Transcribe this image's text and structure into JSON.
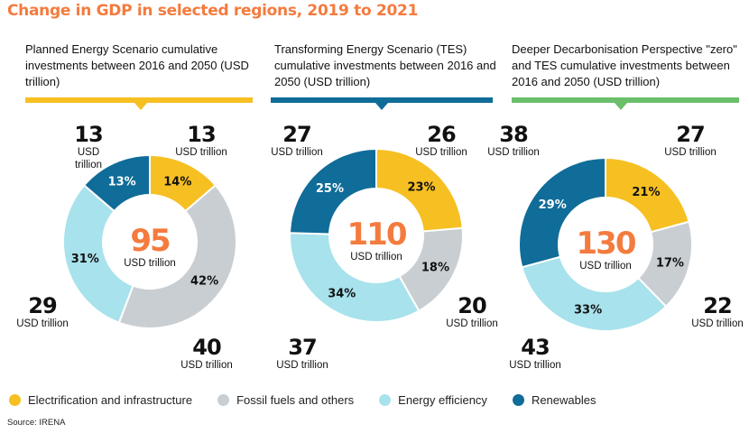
{
  "title": "Change in GDP in selected regions, 2019 to 2021",
  "source": "Source: IRENA",
  "colors": {
    "title": "#f47b3e",
    "electrification": "#f6c022",
    "fossil": "#c9ced3",
    "efficiency": "#a8e2ec",
    "renewables": "#106c98",
    "rule1": "#f6c022",
    "rule2": "#106c98",
    "rule3": "#6bbf6b"
  },
  "legend": [
    {
      "label": "Electrification and infrastructure",
      "color": "#f6c022"
    },
    {
      "label": "Fossil fuels and others",
      "color": "#c9ced3"
    },
    {
      "label": "Energy efficiency",
      "color": "#a8e2ec"
    },
    {
      "label": "Renewables",
      "color": "#106c98"
    }
  ],
  "unit": "USD trillion",
  "chart_data": [
    {
      "type": "pie",
      "title": "Planned Energy Scenario cumulative investments between 2016 and 2050 (USD trillion)",
      "total": "95",
      "total_unit": "USD trillion",
      "categories": [
        "Electrification and infrastructure",
        "Fossil fuels and others",
        "Energy efficiency",
        "Renewables"
      ],
      "values": [
        13,
        40,
        29,
        13
      ],
      "percent_labels": [
        "14%",
        "42%",
        "31%",
        "13%"
      ],
      "value_labels": [
        "13",
        "40",
        "29",
        "13"
      ]
    },
    {
      "type": "pie",
      "title": "Transforming Energy Scenario (TES) cumulative investments between 2016 and 2050 (USD trillion)",
      "total": "110",
      "total_unit": "USD trillion",
      "categories": [
        "Electrification and infrastructure",
        "Fossil fuels and others",
        "Energy efficiency",
        "Renewables"
      ],
      "values": [
        26,
        20,
        37,
        27
      ],
      "percent_labels": [
        "23%",
        "18%",
        "34%",
        "25%"
      ],
      "value_labels": [
        "26",
        "20",
        "37",
        "27"
      ]
    },
    {
      "type": "pie",
      "title": "Deeper Decarbonisation Perspective \"zero\" and TES cumulative investments between 2016 and 2050 (USD trillion)",
      "total": "130",
      "total_unit": "USD trillion",
      "categories": [
        "Electrification and infrastructure",
        "Fossil fuels and others",
        "Energy efficiency",
        "Renewables"
      ],
      "values": [
        27,
        22,
        43,
        38
      ],
      "percent_labels": [
        "21%",
        "17%",
        "33%",
        "29%"
      ],
      "value_labels": [
        "27",
        "22",
        "43",
        "38"
      ]
    }
  ]
}
